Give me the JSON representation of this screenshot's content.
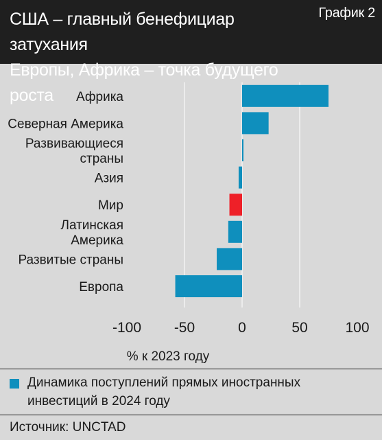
{
  "header": {
    "title_line1": "США – главный бенефициар затухания",
    "title_line2": "Европы, Африка – точка будущего роста",
    "chart_label": "График 2"
  },
  "legend": {
    "text_line1": "Динамика поступлений прямых иностранных",
    "text_line2": "инвестиций в 2024 году"
  },
  "source": "Источник: UNCTAD",
  "colors": {
    "header_bg": "#1f1f1f",
    "background": "#d9d9d9",
    "series": "#0f8fbd",
    "highlight": "#ee2028",
    "grid": "#ffffff"
  },
  "chart_data": {
    "type": "bar",
    "orientation": "horizontal",
    "categories": [
      [
        "Африка"
      ],
      [
        "Северная Америка"
      ],
      [
        "Развивающиеся",
        "страны"
      ],
      [
        "Азия"
      ],
      [
        "Мир"
      ],
      [
        "Латинская",
        "Америка"
      ],
      [
        "Развитые страны"
      ],
      [
        "Европа"
      ]
    ],
    "series": [
      {
        "name": "Динамика поступлений прямых иностранных инвестиций в 2024 году",
        "values": [
          75,
          23,
          0.5,
          -3,
          -11,
          -12,
          -22,
          -58
        ]
      }
    ],
    "highlight_category": "Мир",
    "xlabel": "% к 2023 году",
    "xlim": [
      -100,
      100
    ],
    "xticks": [
      -100,
      -50,
      0,
      50,
      100
    ],
    "xtick_labels": [
      "-100",
      "-50",
      "0",
      "50",
      "100"
    ],
    "grid": "vertical"
  }
}
